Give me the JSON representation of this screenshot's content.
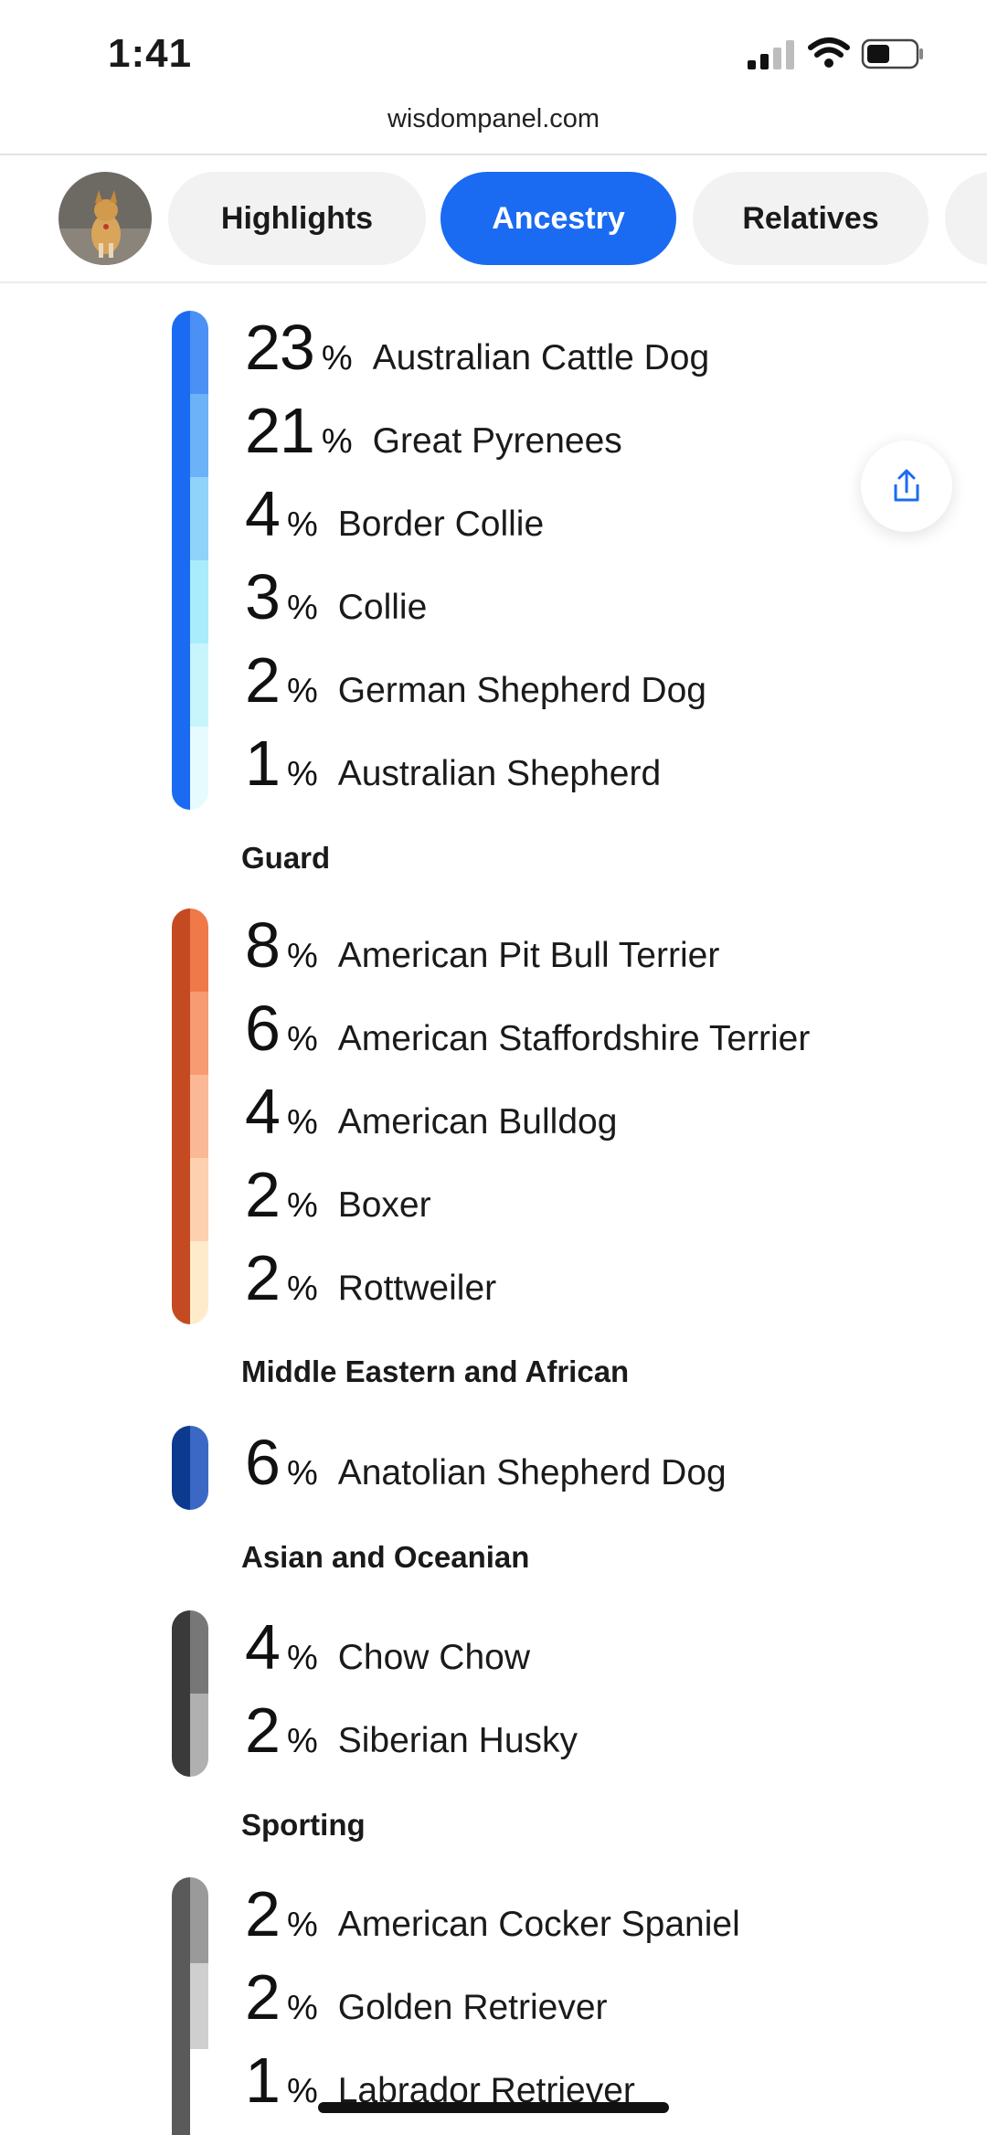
{
  "status_bar": {
    "time": "1:41",
    "icons": [
      "cellular-signal-icon",
      "wifi-icon",
      "battery-icon"
    ]
  },
  "browser": {
    "url": "wisdompanel.com"
  },
  "tabs": [
    {
      "label": "Highlights",
      "active": false
    },
    {
      "label": "Ancestry",
      "active": true
    },
    {
      "label": "Relatives",
      "active": false
    }
  ],
  "colors": {
    "accent": "#1a6bf1",
    "herding": "#1a6bf1",
    "guard": "#c44a22",
    "middle_eastern": "#0b3a8f",
    "asian": "#3a3a3a",
    "sporting": "#5a5a5a"
  },
  "ancestry": {
    "herding": {
      "rows": [
        {
          "pct": "23",
          "sign": "%",
          "breed": "Australian Cattle Dog"
        },
        {
          "pct": "21",
          "sign": "%",
          "breed": "Great Pyrenees"
        },
        {
          "pct": "4",
          "sign": "%",
          "breed": "Border Collie"
        },
        {
          "pct": "3",
          "sign": "%",
          "breed": "Collie"
        },
        {
          "pct": "2",
          "sign": "%",
          "breed": "German Shepherd Dog"
        },
        {
          "pct": "1",
          "sign": "%",
          "breed": "Australian Shepherd"
        }
      ]
    },
    "guard": {
      "title": "Guard",
      "rows": [
        {
          "pct": "8",
          "sign": "%",
          "breed": "American Pit Bull Terrier"
        },
        {
          "pct": "6",
          "sign": "%",
          "breed": "American Staffordshire Terrier"
        },
        {
          "pct": "4",
          "sign": "%",
          "breed": "American Bulldog"
        },
        {
          "pct": "2",
          "sign": "%",
          "breed": "Boxer"
        },
        {
          "pct": "2",
          "sign": "%",
          "breed": "Rottweiler"
        }
      ]
    },
    "middle_eastern": {
      "title": "Middle Eastern and African",
      "rows": [
        {
          "pct": "6",
          "sign": "%",
          "breed": "Anatolian Shepherd Dog"
        }
      ]
    },
    "asian": {
      "title": "Asian and Oceanian",
      "rows": [
        {
          "pct": "4",
          "sign": "%",
          "breed": "Chow Chow"
        },
        {
          "pct": "2",
          "sign": "%",
          "breed": "Siberian Husky"
        }
      ]
    },
    "sporting": {
      "title": "Sporting",
      "rows": [
        {
          "pct": "2",
          "sign": "%",
          "breed": "American Cocker Spaniel"
        },
        {
          "pct": "2",
          "sign": "%",
          "breed": "Golden Retriever"
        },
        {
          "pct": "1",
          "sign": "%",
          "breed": "Labrador Retriever"
        }
      ]
    }
  }
}
